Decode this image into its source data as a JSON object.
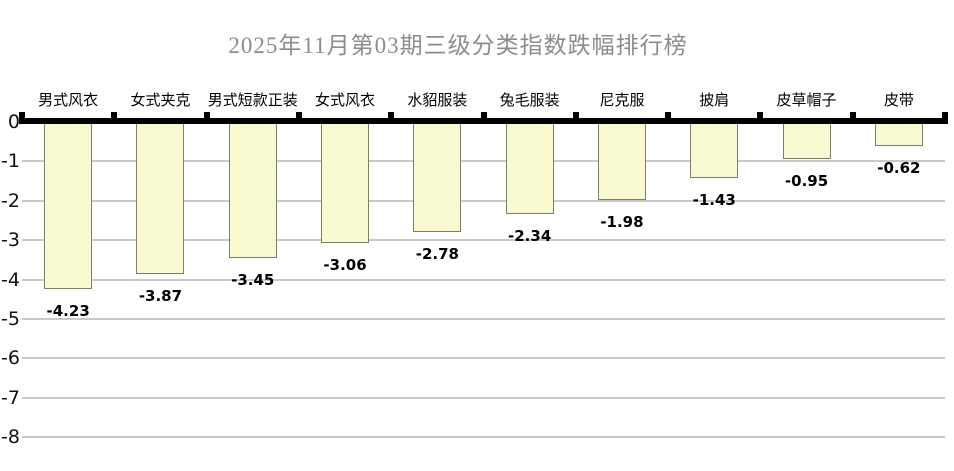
{
  "title": "2025年11月第03期三级分类指数跌幅排行榜",
  "chart_data": {
    "type": "bar",
    "title": "2025年11月第03期三级分类指数跌幅排行榜",
    "categories": [
      "男式风衣",
      "女式夹克",
      "男式短款正装",
      "女式风衣",
      "水貂服装",
      "兔毛服装",
      "尼克服",
      "披肩",
      "皮草帽子",
      "皮带"
    ],
    "values": [
      -4.23,
      -3.87,
      -3.45,
      -3.06,
      -2.78,
      -2.34,
      -1.98,
      -1.43,
      -0.95,
      -0.62
    ],
    "data_labels": [
      "-4.23",
      "-3.87",
      "-3.45",
      "-3.06",
      "-2.78",
      "-2.34",
      "-1.98",
      "-1.43",
      "-0.95",
      "-0.62"
    ],
    "xlabel": "",
    "ylabel": "",
    "y_ticks": [
      "0",
      "-1",
      "-2",
      "-3",
      "-4",
      "-5",
      "-6",
      "-7",
      "-8"
    ],
    "ylim": [
      -8,
      0
    ],
    "grid": "horizontal-on",
    "legend": "none",
    "data_label_position": "outside-end",
    "colors": {
      "bar_fill": "#FAFAD2",
      "bar_border": "#7D7D68",
      "grid_line": "#C9C9C9",
      "axis_line": "#000000",
      "title_text": "#8C8C8C",
      "label_text": "#000000",
      "background": "#FFFFFF"
    }
  }
}
